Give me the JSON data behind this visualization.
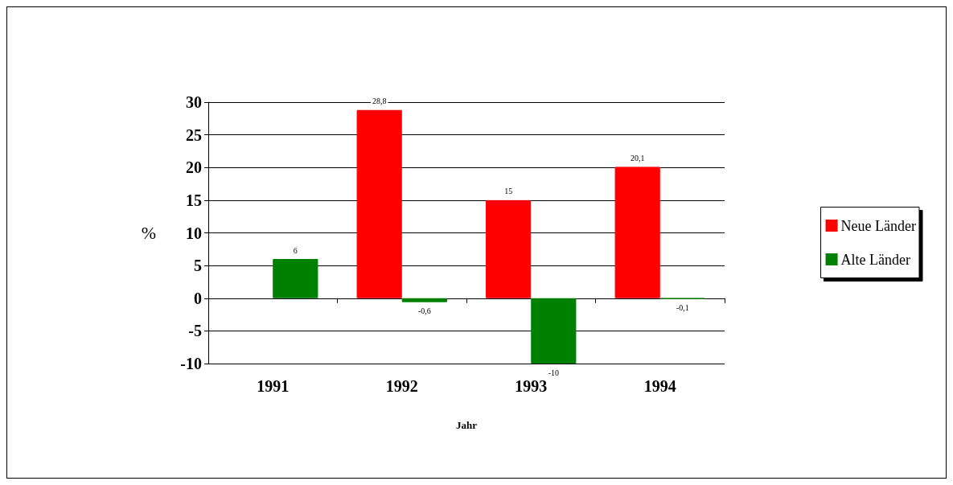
{
  "chart_data": {
    "type": "bar",
    "xlabel": "Jahr",
    "ylabel": "%",
    "categories": [
      "1991",
      "1992",
      "1993",
      "1994"
    ],
    "series": [
      {
        "name": "Neue Länder",
        "color": "#ff0000",
        "values": [
          null,
          28.8,
          15,
          20.1
        ],
        "value_labels": [
          null,
          "28,8",
          "15",
          "20,1"
        ]
      },
      {
        "name": "Alte Länder",
        "color": "#008000",
        "values": [
          6,
          -0.6,
          -10,
          -0.1
        ],
        "value_labels": [
          "6",
          "-0,6",
          "-10",
          "-0,1"
        ]
      }
    ],
    "ylim": [
      -10,
      30
    ],
    "yticks": [
      -10,
      -5,
      0,
      5,
      10,
      15,
      20,
      25,
      30
    ],
    "grid": "y",
    "legend": "right"
  }
}
